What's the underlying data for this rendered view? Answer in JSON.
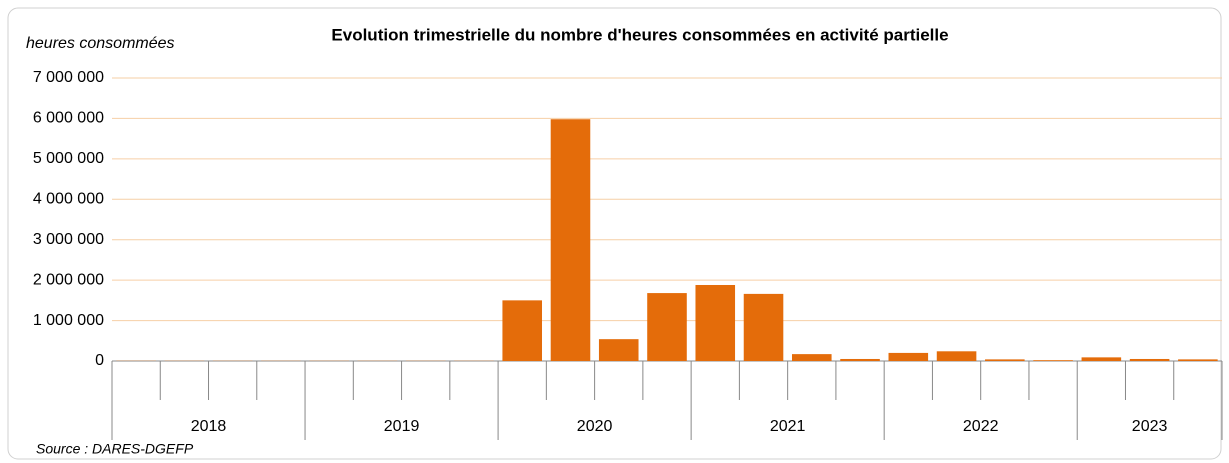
{
  "chart_data": {
    "type": "bar",
    "title": "Evolution trimestrielle du nombre d'heures consommées en activité partielle",
    "y_label": "heures consommées",
    "source": "Source : DARES-DGEFP",
    "categories": [
      "2018",
      "2018",
      "2018",
      "2018",
      "2019",
      "2019",
      "2019",
      "2019",
      "2020",
      "2020",
      "2020",
      "2020",
      "2021",
      "2021",
      "2021",
      "2021",
      "2022",
      "2022",
      "2022",
      "2022",
      "2023",
      "2023",
      "2023"
    ],
    "values": [
      5000,
      5000,
      5000,
      5000,
      5000,
      5000,
      5000,
      5000,
      1500000,
      5980000,
      540000,
      1680000,
      1880000,
      1660000,
      170000,
      50000,
      200000,
      240000,
      40000,
      20000,
      90000,
      50000,
      40000
    ],
    "color": "#e46c0a",
    "ylim": [
      0,
      7000000
    ],
    "yticks": [
      {
        "value": 0,
        "label": "0"
      },
      {
        "value": 1000000,
        "label": "1 000 000"
      },
      {
        "value": 2000000,
        "label": "2 000 000"
      },
      {
        "value": 3000000,
        "label": "3 000 000"
      },
      {
        "value": 4000000,
        "label": "4 000 000"
      },
      {
        "value": 5000000,
        "label": "5 000 000"
      },
      {
        "value": 6000000,
        "label": "6 000 000"
      },
      {
        "value": 7000000,
        "label": "7 000 000"
      }
    ],
    "grid": true
  }
}
